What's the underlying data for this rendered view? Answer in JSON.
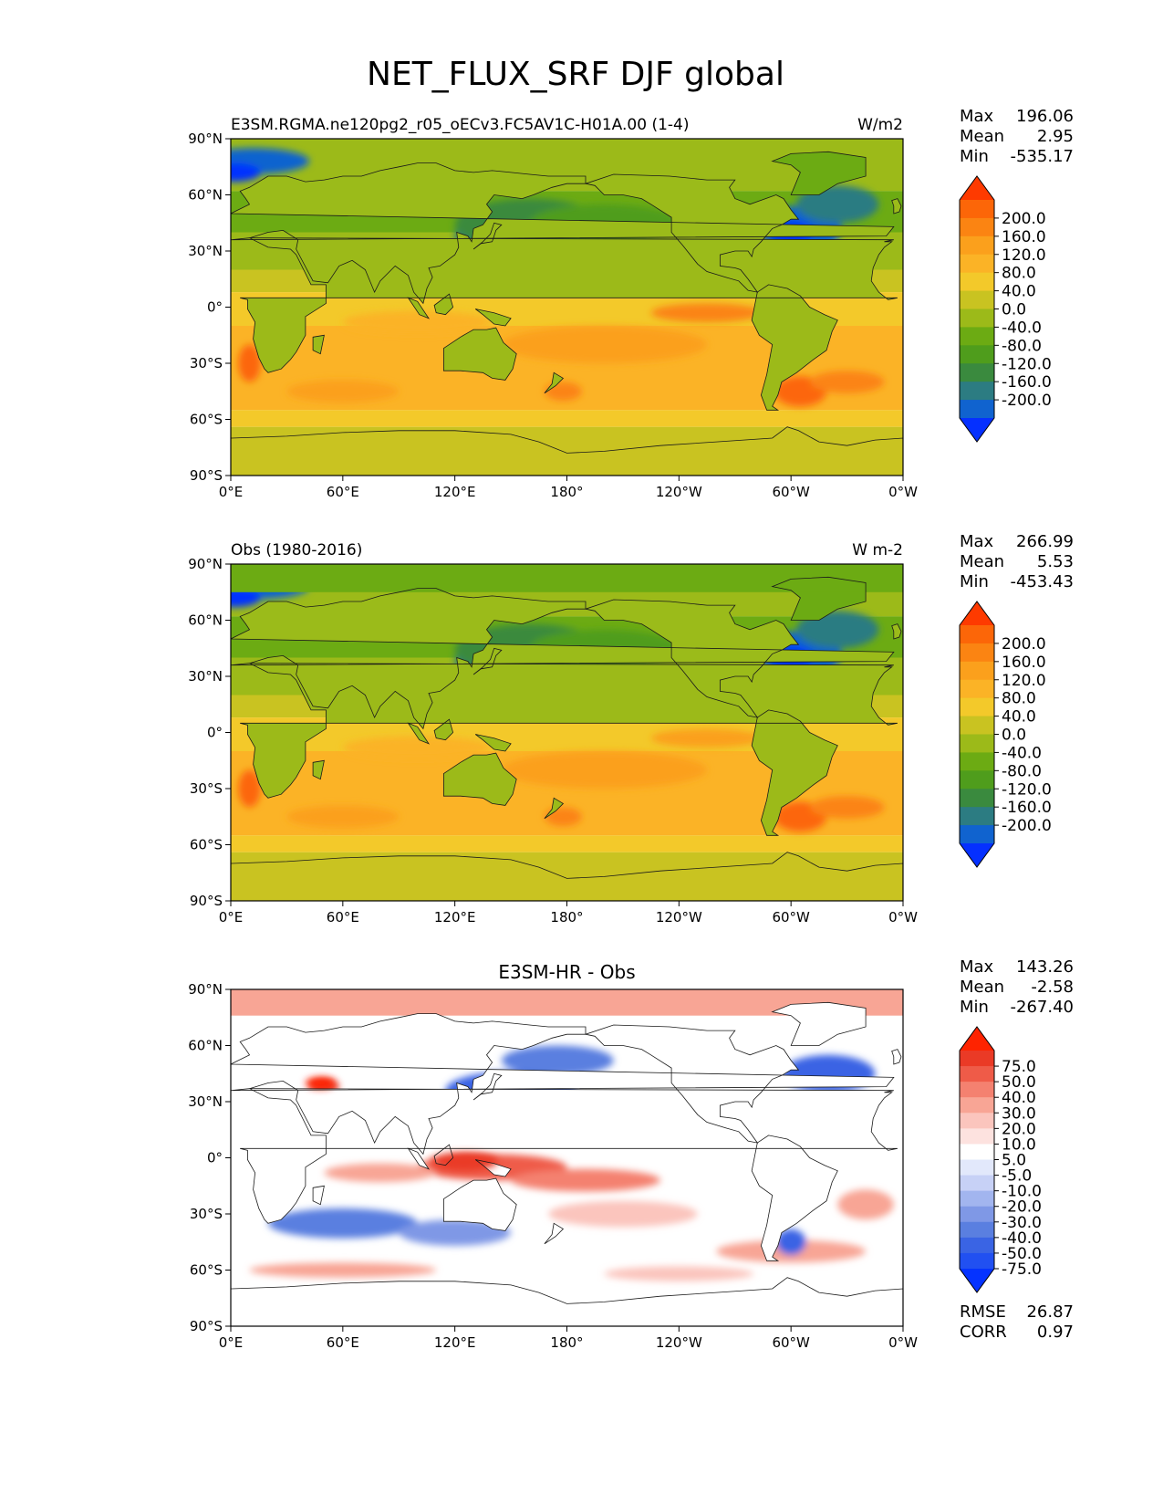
{
  "figure": {
    "title": "NET_FLUX_SRF DJF global"
  },
  "colors": {
    "abs_levels": [
      "#0530ff",
      "#1063cf",
      "#2c7c82",
      "#3a8a3e",
      "#4f9d1c",
      "#6cab13",
      "#9cba19",
      "#c9c321",
      "#f3c92a",
      "#fbb326",
      "#fba01c",
      "#fb8412",
      "#fc6608",
      "#fe3a00"
    ],
    "diff_levels": [
      "#0533ff",
      "#2150f1",
      "#3a64e4",
      "#5a7fe0",
      "#7f98e6",
      "#a2b5ef",
      "#c7d1f6",
      "#e2e8fb",
      "#ffffff",
      "#fde2df",
      "#fbc5bd",
      "#f8a595",
      "#f48170",
      "#ef5b48",
      "#ea3a26",
      "#fe2300"
    ],
    "land_abs": "#9bbb1a",
    "coast": "#1a1a1a"
  },
  "axes": {
    "lat_ticks": [
      "90°N",
      "60°N",
      "30°N",
      "0°",
      "30°S",
      "60°S",
      "90°S"
    ],
    "lon_ticks": [
      "0°E",
      "60°E",
      "120°E",
      "180°",
      "120°W",
      "60°W",
      "0°W"
    ]
  },
  "panels": [
    {
      "left_title": "E3SM.RGMA.ne120pg2_r05_oECv3.FC5AV1C-H01A.00 (1-4)",
      "center_title": "",
      "units": "W/m2",
      "stats": [
        {
          "label": "Max",
          "value": "196.06"
        },
        {
          "label": "Mean",
          "value": "2.95"
        },
        {
          "label": "Min",
          "value": "-535.17"
        }
      ],
      "colorbar": {
        "labels": [
          "200.0",
          "160.0",
          "120.0",
          "80.0",
          "40.0",
          "0.0",
          "-40.0",
          "-80.0",
          "-120.0",
          "-160.0",
          "-200.0"
        ]
      },
      "extra_stats": []
    },
    {
      "left_title": "Obs (1980-2016)",
      "center_title": "",
      "units": "W m-2",
      "stats": [
        {
          "label": "Max",
          "value": "266.99"
        },
        {
          "label": "Mean",
          "value": "5.53"
        },
        {
          "label": "Min",
          "value": "-453.43"
        }
      ],
      "colorbar": {
        "labels": [
          "200.0",
          "160.0",
          "120.0",
          "80.0",
          "40.0",
          "0.0",
          "-40.0",
          "-80.0",
          "-120.0",
          "-160.0",
          "-200.0"
        ]
      },
      "extra_stats": []
    },
    {
      "left_title": "",
      "center_title": "E3SM-HR - Obs",
      "units": "",
      "stats": [
        {
          "label": "Max",
          "value": "143.26"
        },
        {
          "label": "Mean",
          "value": "-2.58"
        },
        {
          "label": "Min",
          "value": "-267.40"
        }
      ],
      "colorbar": {
        "labels": [
          "75.0",
          "50.0",
          "40.0",
          "30.0",
          "20.0",
          "10.0",
          "5.0",
          "-5.0",
          "-10.0",
          "-20.0",
          "-30.0",
          "-40.0",
          "-50.0",
          "-75.0"
        ]
      },
      "extra_stats": [
        {
          "label": "RMSE",
          "value": "26.87"
        },
        {
          "label": "CORR",
          "value": "0.97"
        }
      ]
    }
  ],
  "chart_data": [
    {
      "type": "heatmap",
      "title": "E3SM.RGMA.ne120pg2_r05_oECv3.FC5AV1C-H01A.00 (1-4)",
      "units": "W/m2",
      "xlim": [
        0,
        360
      ],
      "ylim": [
        -90,
        90
      ],
      "x_ticks": [
        "0°E",
        "60°E",
        "120°E",
        "180°",
        "120°W",
        "60°W",
        "0°W"
      ],
      "y_ticks": [
        "90°N",
        "60°N",
        "30°N",
        "0°",
        "30°S",
        "60°S",
        "90°S"
      ],
      "levels": [
        -200,
        -160,
        -120,
        -80,
        -40,
        0,
        40,
        80,
        120,
        160,
        200
      ],
      "max": 196.06,
      "mean": 2.95,
      "min": -535.17
    },
    {
      "type": "heatmap",
      "title": "Obs (1980-2016)",
      "units": "W m-2",
      "xlim": [
        0,
        360
      ],
      "ylim": [
        -90,
        90
      ],
      "x_ticks": [
        "0°E",
        "60°E",
        "120°E",
        "180°",
        "120°W",
        "60°W",
        "0°W"
      ],
      "y_ticks": [
        "90°N",
        "60°N",
        "30°N",
        "0°",
        "30°S",
        "60°S",
        "90°S"
      ],
      "levels": [
        -200,
        -160,
        -120,
        -80,
        -40,
        0,
        40,
        80,
        120,
        160,
        200
      ],
      "max": 266.99,
      "mean": 5.53,
      "min": -453.43
    },
    {
      "type": "heatmap",
      "title": "E3SM-HR - Obs",
      "xlim": [
        0,
        360
      ],
      "ylim": [
        -90,
        90
      ],
      "x_ticks": [
        "0°E",
        "60°E",
        "120°E",
        "180°",
        "120°W",
        "60°W",
        "0°W"
      ],
      "y_ticks": [
        "90°N",
        "60°N",
        "30°N",
        "0°",
        "30°S",
        "60°S",
        "90°S"
      ],
      "levels": [
        -75,
        -50,
        -40,
        -30,
        -20,
        -10,
        -5,
        5,
        10,
        20,
        30,
        40,
        50,
        75
      ],
      "max": 143.26,
      "mean": -2.58,
      "min": -267.4,
      "rmse": 26.87,
      "corr": 0.97
    }
  ]
}
